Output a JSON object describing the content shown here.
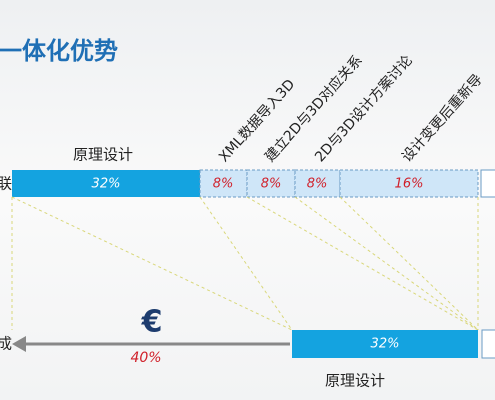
{
  "title": "一体化优势",
  "top_left_label": "联",
  "top_bar_caption": "原理设计",
  "top_segments": [
    "32%",
    "8%",
    "8%",
    "8%",
    "16%"
  ],
  "step_labels": [
    "XML数据导入3D",
    "建立2D与3D对应关系",
    "2D与3D设计方案讨论",
    "设计变更后重新导"
  ],
  "bottom_left_label": "成",
  "saving_symbol": "€",
  "saving_percent": "40%",
  "bottom_segment": "32%",
  "bottom_bar_caption": "原理设计"
}
